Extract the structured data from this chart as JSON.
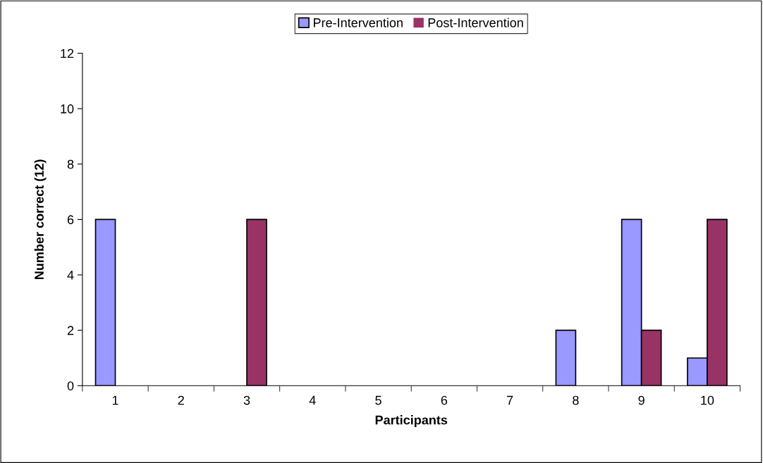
{
  "chart_data": {
    "type": "bar",
    "xlabel": "Participants",
    "ylabel": "Number correct (12)",
    "categories": [
      "1",
      "2",
      "3",
      "4",
      "5",
      "6",
      "7",
      "8",
      "9",
      "10"
    ],
    "series": [
      {
        "name": "Pre-Intervention",
        "color": "#9999ff",
        "values": [
          6,
          0,
          0,
          0,
          0,
          0,
          0,
          2,
          6,
          1
        ]
      },
      {
        "name": "Post-Intervention",
        "color": "#993366",
        "values": [
          0,
          0,
          6,
          0,
          0,
          0,
          0,
          0,
          2,
          6
        ]
      }
    ],
    "ylim": [
      0,
      12
    ],
    "yticks": [
      0,
      2,
      4,
      6,
      8,
      10,
      12
    ],
    "grid": false,
    "legend": "top"
  }
}
